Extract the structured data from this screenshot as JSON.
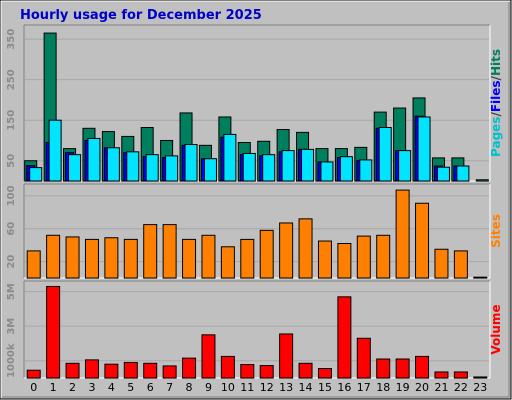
{
  "chart_data": {
    "type": "bar",
    "title": "Hourly usage for December 2025",
    "categories": [
      "0",
      "1",
      "2",
      "3",
      "4",
      "5",
      "6",
      "7",
      "8",
      "9",
      "10",
      "11",
      "12",
      "13",
      "14",
      "15",
      "16",
      "17",
      "18",
      "19",
      "20",
      "21",
      "22",
      "23"
    ],
    "panels": [
      {
        "id": "hits",
        "ylim": [
          0,
          380
        ],
        "yticks": [
          "50",
          "150",
          "250",
          "350"
        ],
        "ytick_values": [
          50,
          150,
          250,
          350
        ],
        "series": [
          {
            "name": "Hits",
            "color": "#007f5f",
            "values": [
              50,
              365,
              80,
              130,
              122,
              110,
              132,
              100,
              168,
              88,
              158,
              95,
              98,
              127,
              120,
              80,
              80,
              83,
              170,
              180,
              205,
              57,
              57,
              0
            ]
          },
          {
            "name": "Files",
            "color": "#0000ff",
            "values": [
              38,
              95,
              70,
              100,
              82,
              70,
              60,
              58,
              88,
              55,
              108,
              65,
              62,
              72,
              78,
              47,
              58,
              50,
              130,
              75,
              160,
              37,
              37,
              0
            ]
          },
          {
            "name": "Pages",
            "color": "#00e4ff",
            "values": [
              33,
              150,
              65,
              105,
              82,
              72,
              65,
              62,
              90,
              55,
              115,
              68,
              65,
              75,
              78,
              47,
              60,
              52,
              132,
              75,
              158,
              34,
              37,
              3
            ]
          }
        ],
        "side_label_parts": [
          {
            "text": "Pages",
            "color": "#00c0d0"
          },
          {
            "text": "/",
            "color": "#404040"
          },
          {
            "text": "Files",
            "color": "#0000ff"
          },
          {
            "text": "/",
            "color": "#404040"
          },
          {
            "text": "Hits",
            "color": "#007f5f"
          }
        ]
      },
      {
        "id": "sites",
        "ylim": [
          0,
          112
        ],
        "yticks": [
          "20",
          "60",
          "100"
        ],
        "ytick_values": [
          20,
          60,
          100
        ],
        "series": [
          {
            "name": "Sites",
            "color": "#ff8000",
            "values": [
              33,
              52,
              50,
              47,
              49,
              47,
              65,
              65,
              47,
              52,
              38,
              47,
              58,
              67,
              72,
              45,
              42,
              51,
              52,
              107,
              91,
              35,
              33,
              1
            ]
          }
        ],
        "side_label_parts": [
          {
            "text": "Sites",
            "color": "#ff8000"
          }
        ]
      },
      {
        "id": "volume",
        "ylim": [
          0,
          5500
        ],
        "yticks": [
          "1000k",
          "3M",
          "5M"
        ],
        "ytick_values": [
          1000,
          3000,
          5000
        ],
        "series": [
          {
            "name": "Volume",
            "color": "#ff0000",
            "values": [
              450,
              5300,
              850,
              1050,
              800,
              900,
              850,
              700,
              1150,
              2500,
              1250,
              780,
              720,
              2550,
              850,
              550,
              4700,
              2300,
              1100,
              1100,
              1250,
              350,
              350,
              60
            ]
          }
        ],
        "side_label_parts": [
          {
            "text": "Volume",
            "color": "#ff0000"
          }
        ]
      }
    ]
  },
  "colors": {
    "background": "#c0c0c0",
    "title": "#0000cc",
    "frame_dark": "#808080",
    "frame_light": "#ffffff"
  }
}
